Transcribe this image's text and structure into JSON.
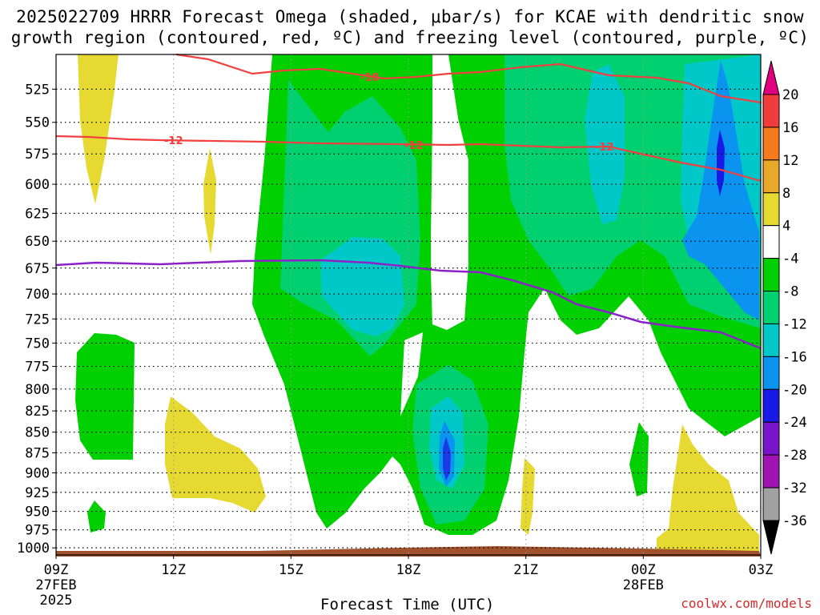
{
  "title_line1": "2025022709 HRRR Forecast Omega (shaded, μbar/s) for KCAE with dendritic snow",
  "title_line2": "growth region (contoured, red, ºC) and freezing level (contoured, purple, ºC)",
  "credit": "coolwx.com/models",
  "chart_data": {
    "type": "contour",
    "xlabel": "Forecast Time (UTC)",
    "ylabel": "",
    "x_ticks": [
      {
        "label": "09Z",
        "sub1": "27FEB",
        "sub2": "2025"
      },
      {
        "label": "12Z",
        "sub1": "",
        "sub2": ""
      },
      {
        "label": "15Z",
        "sub1": "",
        "sub2": ""
      },
      {
        "label": "18Z",
        "sub1": "",
        "sub2": ""
      },
      {
        "label": "21Z",
        "sub1": "",
        "sub2": ""
      },
      {
        "label": "00Z",
        "sub1": "28FEB",
        "sub2": ""
      },
      {
        "label": "03Z",
        "sub1": "",
        "sub2": ""
      }
    ],
    "x_hours": [
      0,
      3,
      6,
      9,
      12,
      15,
      18
    ],
    "y_ticks": [
      525,
      550,
      575,
      600,
      625,
      650,
      675,
      700,
      725,
      750,
      775,
      800,
      825,
      850,
      875,
      900,
      925,
      950,
      975,
      1000
    ],
    "ylim": [
      500,
      1010
    ],
    "y_scale": "log",
    "colorbar": {
      "labels": [
        "20",
        "16",
        "12",
        "8",
        "4",
        "-4",
        "-8",
        "-12",
        "-16",
        "-20",
        "-24",
        "-28",
        "-32",
        "-36"
      ],
      "colors": [
        "#e0007f",
        "#f03c3c",
        "#f57a1e",
        "#e8a82a",
        "#e6da32",
        "#ffffff",
        "#00d000",
        "#00d070",
        "#00c8c8",
        "#0a94f0",
        "#1a1ae6",
        "#7a14c8",
        "#a014b4",
        "#a0a0a0",
        "#000000"
      ]
    },
    "red_contour_labels": [
      "-18",
      "-12",
      "-12",
      "-12"
    ],
    "purple_contour_label": "freezing level",
    "grid": true
  }
}
